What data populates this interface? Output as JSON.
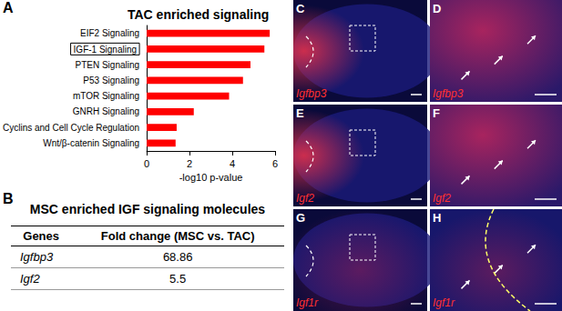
{
  "chart_data": {
    "type": "bar",
    "orientation": "horizontal",
    "title": "TAC enriched signaling",
    "xlabel": "-log10 p-value",
    "categories": [
      "EIF2 Signaling",
      "IGF-1 Signaling",
      "PTEN Signaling",
      "P53 Signaling",
      "mTOR Signaling",
      "GNRH Signaling",
      "Cyclins and Cell Cycle Regulation",
      "Wnt/β-catenin Signaling"
    ],
    "values": [
      5.75,
      5.5,
      4.85,
      4.5,
      3.85,
      2.2,
      1.4,
      1.35
    ],
    "color": "#ff0000",
    "xlim": [
      0,
      6
    ],
    "xticks": [
      0,
      2,
      4,
      6
    ],
    "grid": false
  },
  "panel_labels": [
    "A",
    "B"
  ],
  "table": {
    "title": "MSC enriched IGF signaling molecules",
    "header": [
      "Genes",
      "Fold change (MSC vs. TAC)"
    ],
    "rows": [
      [
        "Igfbp3",
        68.86
      ],
      [
        "Igf2",
        5.5
      ]
    ]
  },
  "images": [
    {
      "label": "C",
      "gene": "Igfbp3"
    },
    {
      "label": "D",
      "gene": "Igfbp3"
    },
    {
      "label": "E",
      "gene": "Igf2"
    },
    {
      "label": "F",
      "gene": "Igf2"
    },
    {
      "label": "G",
      "gene": "Igf1r"
    },
    {
      "label": "H",
      "gene": "Igf1r"
    }
  ]
}
